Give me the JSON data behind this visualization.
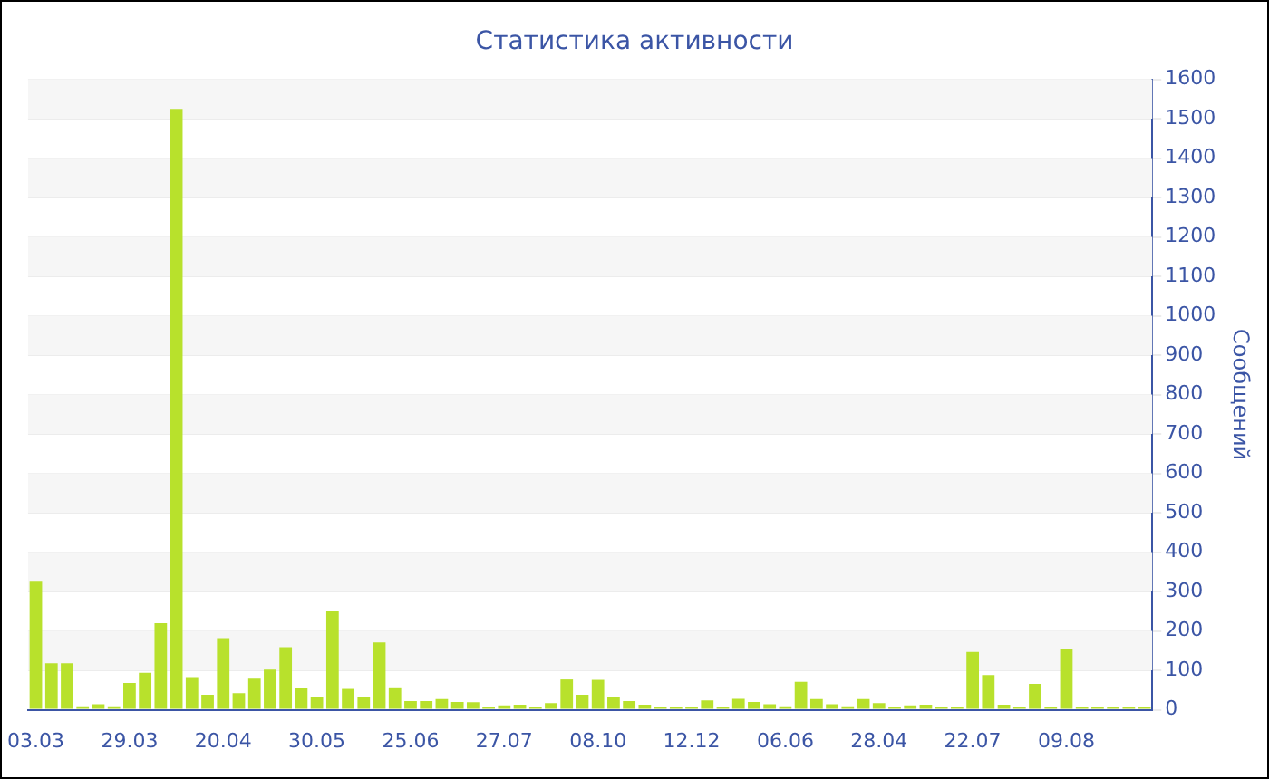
{
  "chart_data": {
    "type": "bar",
    "title": "Статистика активности",
    "ylabel": "Сообщений",
    "categories": [
      "03.03",
      null,
      null,
      null,
      null,
      null,
      "29.03",
      null,
      null,
      null,
      null,
      null,
      "20.04",
      null,
      null,
      null,
      null,
      null,
      "30.05",
      null,
      null,
      null,
      null,
      null,
      "25.06",
      null,
      null,
      null,
      null,
      null,
      "27.07",
      null,
      null,
      null,
      null,
      null,
      "08.10",
      null,
      null,
      null,
      null,
      null,
      "12.12",
      null,
      null,
      null,
      null,
      null,
      "06.06",
      null,
      null,
      null,
      null,
      null,
      "28.04",
      null,
      null,
      null,
      null,
      null,
      "22.07",
      null,
      null,
      null,
      null,
      null,
      "09.08",
      null,
      null,
      null,
      null,
      null
    ],
    "values": [
      327,
      118,
      118,
      9,
      14,
      9,
      68,
      94,
      220,
      1525,
      83,
      38,
      182,
      42,
      79,
      102,
      159,
      55,
      33,
      250,
      53,
      31,
      171,
      57,
      22,
      22,
      27,
      20,
      19,
      6,
      11,
      13,
      8,
      17,
      77,
      38,
      76,
      33,
      22,
      13,
      8,
      8,
      8,
      24,
      8,
      28,
      20,
      14,
      9,
      71,
      27,
      14,
      9,
      27,
      17,
      8,
      11,
      13,
      8,
      8,
      147,
      88,
      13,
      6,
      66,
      6,
      153,
      6,
      6,
      6,
      6,
      6
    ],
    "color": "#b8e12c",
    "ylim": [
      0,
      1600
    ],
    "yticks": [
      0,
      100,
      200,
      300,
      400,
      500,
      600,
      700,
      800,
      900,
      1000,
      1100,
      1200,
      1300,
      1400,
      1500,
      1600
    ],
    "grid": true
  }
}
